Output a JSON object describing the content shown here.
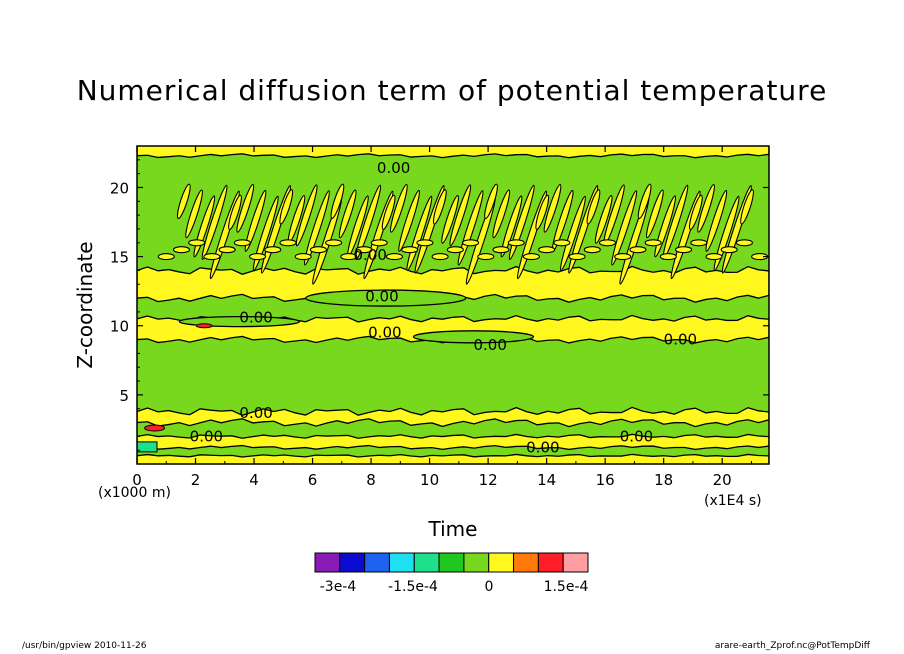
{
  "chart_data": {
    "type": "heatmap",
    "title": "Numerical diffusion term of potential temperature",
    "xlabel": "Time",
    "ylabel": "Z-coordinate",
    "x_unit": "(x1E4 s)",
    "y_unit": "(x1000 m)",
    "xlim": [
      0,
      21.6
    ],
    "ylim": [
      0,
      23
    ],
    "x_ticks": [
      "0",
      "2",
      "4",
      "6",
      "8",
      "10",
      "12",
      "14",
      "16",
      "18",
      "20"
    ],
    "y_ticks": [
      "5",
      "10",
      "15",
      "20"
    ],
    "contour_labels": [
      "0.00",
      "0.00",
      "0.00",
      "0.00",
      "0.00",
      "0.00",
      "0.00",
      "0.00",
      "0.00",
      "0.00",
      "0.00"
    ],
    "dominant_bands": [
      {
        "z_range": [
          0,
          0.5
        ],
        "level": "positive (yellow)"
      },
      {
        "z_range": [
          0.5,
          4
        ],
        "level": "slightly negative (green)"
      },
      {
        "z_range": [
          4,
          9
        ],
        "level": "slightly negative (green)"
      },
      {
        "z_range": [
          9,
          10.5
        ],
        "level": "slightly positive (yellow)"
      },
      {
        "z_range": [
          10.5,
          12
        ],
        "level": "slightly negative (green)"
      },
      {
        "z_range": [
          12,
          14
        ],
        "level": "slightly positive (yellow)"
      },
      {
        "z_range": [
          14,
          20
        ],
        "level": "wave pattern green/yellow"
      },
      {
        "z_range": [
          20,
          23
        ],
        "level": "slightly negative (green)"
      }
    ],
    "colorbar": {
      "colors": [
        "#8a1ab5",
        "#0b0bd2",
        "#1e62f0",
        "#1ee0f0",
        "#1ee08a",
        "#1ec81e",
        "#78d81e",
        "#fff71e",
        "#ff7a0a",
        "#ff1e28",
        "#ff9ea2"
      ],
      "labels": [
        "-3e-4",
        "-1.5e-4",
        "0",
        "1.5e-4"
      ]
    }
  },
  "footer": {
    "left": "/usr/bin/gpview  2010-11-26",
    "right": "arare-earth_Zprof.nc@PotTempDiff"
  }
}
